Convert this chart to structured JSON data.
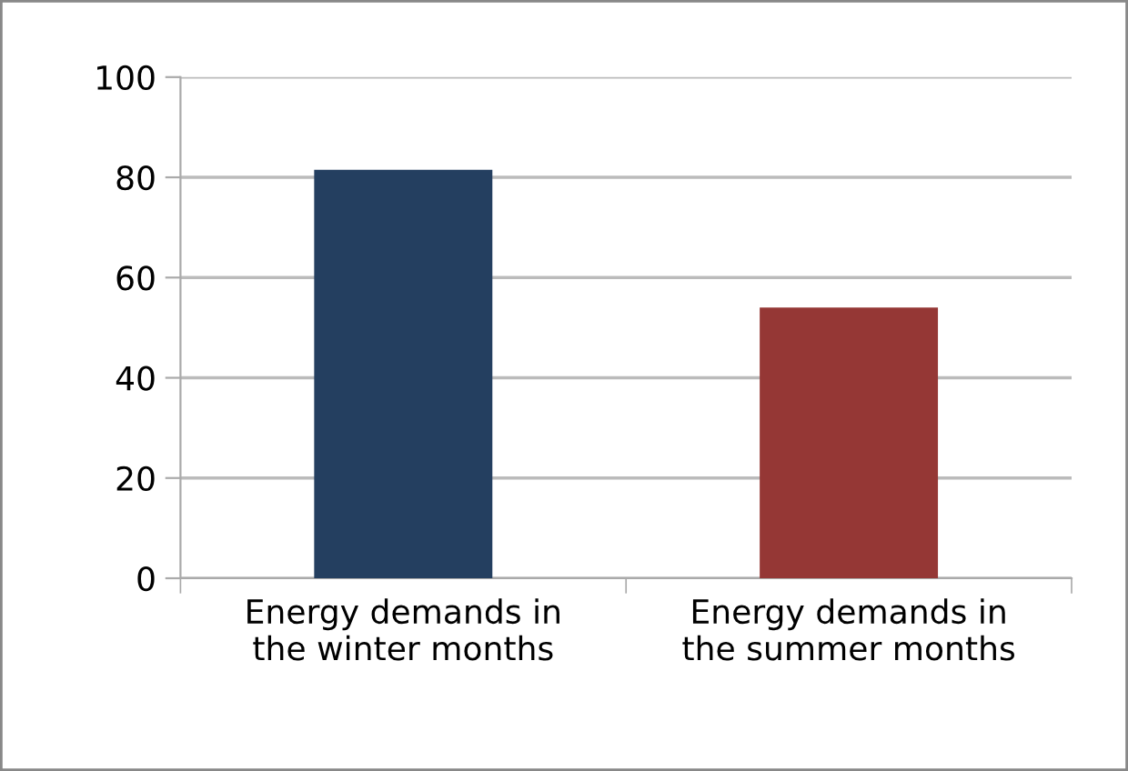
{
  "chart_data": {
    "type": "bar",
    "categories": [
      "Energy demands in\nthe winter months",
      "Energy demands in\nthe summer months"
    ],
    "values": [
      81.5,
      54
    ],
    "colors": [
      "#243f60",
      "#953735"
    ],
    "ylim": [
      0,
      100
    ],
    "yticks": [
      0,
      20,
      40,
      60,
      80,
      100
    ],
    "grid": "y",
    "legend": false
  }
}
